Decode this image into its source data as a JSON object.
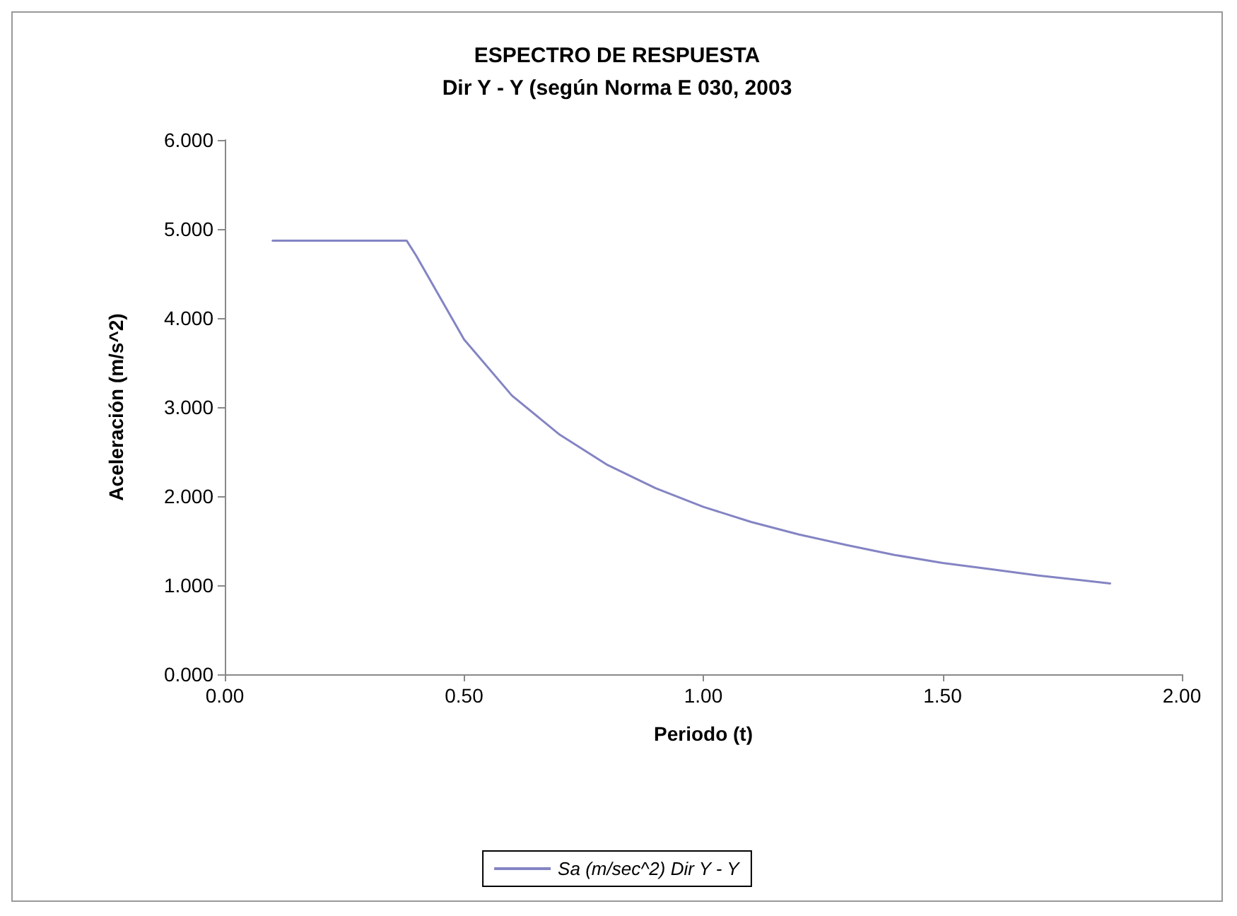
{
  "chart_data": {
    "type": "line",
    "title": "ESPECTRO DE RESPUESTA",
    "subtitle": "Dir Y - Y (según Norma E 030, 2003",
    "xlabel": "Periodo (t)",
    "ylabel": "Aceleración (m/s^2)",
    "x": [
      0.1,
      0.2,
      0.3,
      0.38,
      0.4,
      0.5,
      0.6,
      0.7,
      0.8,
      0.9,
      1.0,
      1.1,
      1.2,
      1.3,
      1.4,
      1.5,
      1.6,
      1.7,
      1.85
    ],
    "series": [
      {
        "name": "Sa (m/sec^2) Dir Y - Y",
        "color": "#8484c4",
        "values": [
          4.87,
          4.87,
          4.87,
          4.87,
          4.7,
          3.76,
          3.13,
          2.69,
          2.35,
          2.09,
          1.88,
          1.71,
          1.57,
          1.45,
          1.34,
          1.25,
          1.18,
          1.11,
          1.02
        ]
      }
    ],
    "xlim": [
      0,
      2
    ],
    "xticks": [
      {
        "value": 0,
        "label": "0.00"
      },
      {
        "value": 0.5,
        "label": "0.50"
      },
      {
        "value": 1,
        "label": "1.00"
      },
      {
        "value": 1.5,
        "label": "1.50"
      },
      {
        "value": 2,
        "label": "2.00"
      }
    ],
    "ylim": [
      0,
      6
    ],
    "yticks": [
      {
        "value": 0,
        "label": "0.000"
      },
      {
        "value": 1,
        "label": "1.000"
      },
      {
        "value": 2,
        "label": "2.000"
      },
      {
        "value": 3,
        "label": "3.000"
      },
      {
        "value": 4,
        "label": "4.000"
      },
      {
        "value": 5,
        "label": "5.000"
      },
      {
        "value": 6,
        "label": "6.000"
      }
    ],
    "grid": false,
    "legend": "bottom",
    "marker": "none",
    "line_style": "solid"
  }
}
